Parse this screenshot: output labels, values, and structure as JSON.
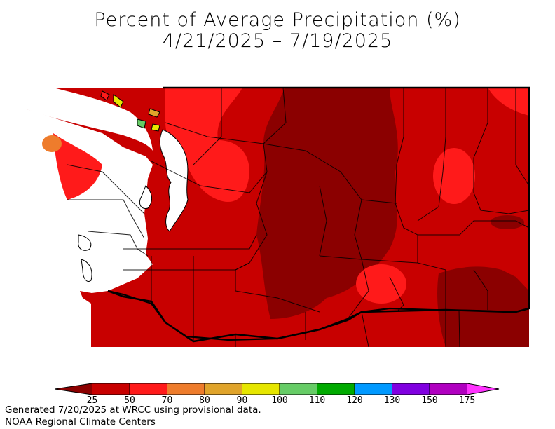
{
  "title": {
    "line1": "Percent of Average Precipitation (%)",
    "line2": "4/21/2025 – 7/19/2025"
  },
  "legend": {
    "colors": [
      "#8b0000",
      "#c80000",
      "#ff1a1a",
      "#ee7c2c",
      "#e0a42b",
      "#e6e600",
      "#66cc66",
      "#00aa00",
      "#0099ff",
      "#8000e0",
      "#b000c0",
      "#ff33ff"
    ],
    "labels": [
      "25",
      "50",
      "70",
      "80",
      "90",
      "100",
      "110",
      "120",
      "130",
      "150",
      "175"
    ]
  },
  "footer": {
    "line1": "Generated 7/20/2025 at WRCC using provisional data.",
    "line2": "NOAA Regional Climate Centers"
  }
}
